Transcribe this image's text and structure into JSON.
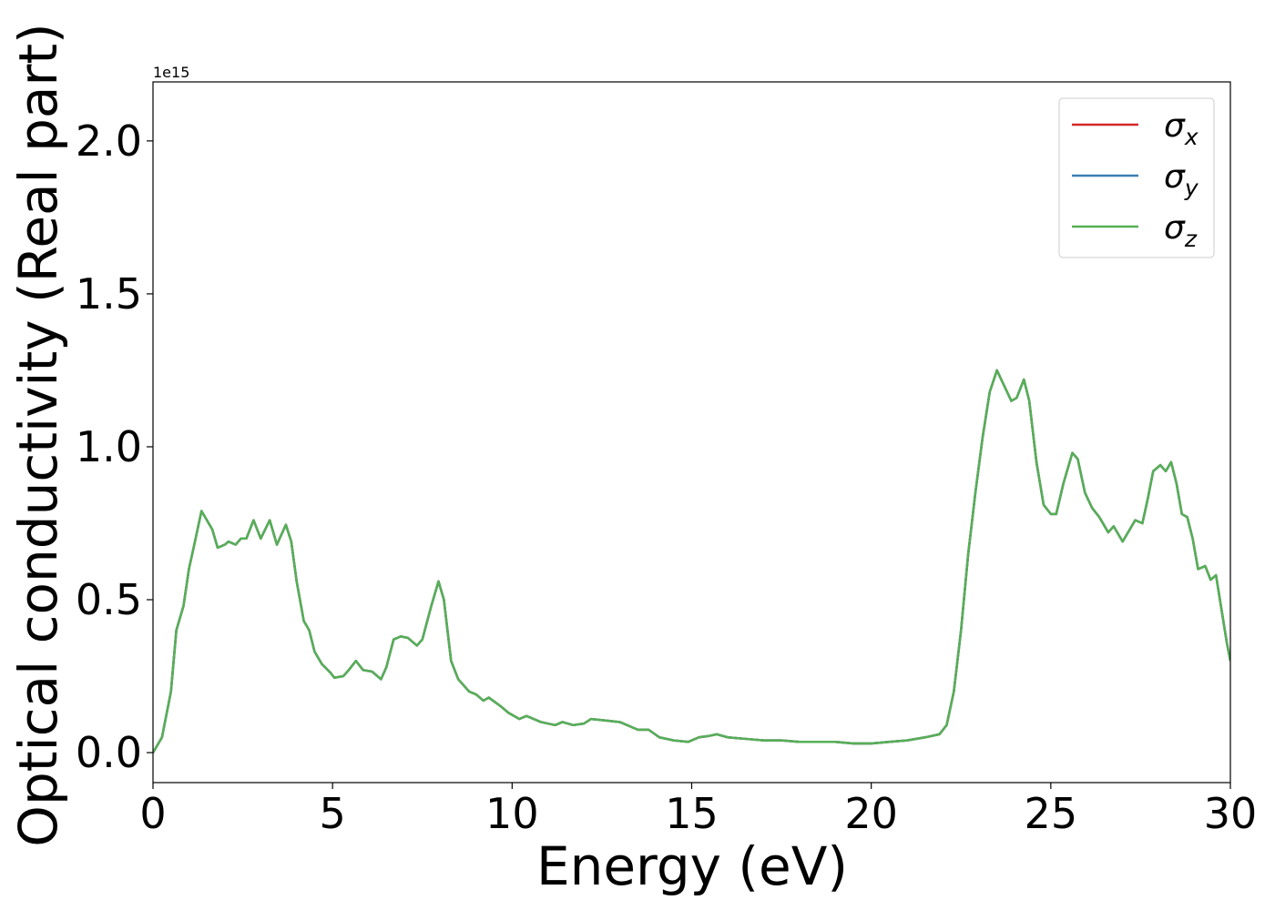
{
  "chart_data": {
    "type": "line",
    "xlabel": "Energy (eV)",
    "ylabel": "Optical conductivity (Real part)",
    "offset_text": "1e15",
    "xlim": [
      0,
      30
    ],
    "xticks": [
      0,
      5,
      10,
      15,
      20,
      25,
      30
    ],
    "ylim": [
      -0.098,
      2.193
    ],
    "yticks": [
      {
        "value": 0,
        "label": "0.0"
      },
      {
        "value": 0.5,
        "label": "0.5"
      },
      {
        "value": 1,
        "label": "1.0"
      },
      {
        "value": 1.5,
        "label": "1.5"
      },
      {
        "value": 2,
        "label": "2.0"
      }
    ],
    "legend": "upper right",
    "x": [
      0,
      0.25,
      0.5,
      0.65,
      0.85,
      1.0,
      1.15,
      1.35,
      1.5,
      1.65,
      1.8,
      2.0,
      2.1,
      2.3,
      2.45,
      2.6,
      2.8,
      3.0,
      3.25,
      3.45,
      3.7,
      3.85,
      4.0,
      4.2,
      4.35,
      4.5,
      4.7,
      4.95,
      5.05,
      5.3,
      5.45,
      5.65,
      5.85,
      6.1,
      6.35,
      6.5,
      6.7,
      6.9,
      7.1,
      7.35,
      7.5,
      7.75,
      7.95,
      8.1,
      8.3,
      8.5,
      8.8,
      9.0,
      9.2,
      9.35,
      9.7,
      9.9,
      10.2,
      10.4,
      10.8,
      11.2,
      11.4,
      11.7,
      12.0,
      12.2,
      12.6,
      13.0,
      13.5,
      13.8,
      14.1,
      14.5,
      14.9,
      15.2,
      15.5,
      15.7,
      16.0,
      16.5,
      17.0,
      17.5,
      18.0,
      18.5,
      19.0,
      19.5,
      20.0,
      20.5,
      21.0,
      21.5,
      21.9,
      22.1,
      22.3,
      22.5,
      22.7,
      22.9,
      23.1,
      23.3,
      23.5,
      23.7,
      23.9,
      24.05,
      24.25,
      24.4,
      24.6,
      24.8,
      25.0,
      25.15,
      25.35,
      25.6,
      25.75,
      25.95,
      26.15,
      26.35,
      26.6,
      26.75,
      27.0,
      27.2,
      27.35,
      27.55,
      27.7,
      27.85,
      28.05,
      28.2,
      28.35,
      28.5,
      28.65,
      28.8,
      28.95,
      29.1,
      29.3,
      29.45,
      29.6,
      29.75,
      29.9,
      30.0
    ],
    "series": [
      {
        "name": "σx",
        "color": "#d62728",
        "values": [
          0,
          0.05,
          0.2,
          0.4,
          0.48,
          0.6,
          0.68,
          0.79,
          0.76,
          0.73,
          0.67,
          0.68,
          0.69,
          0.68,
          0.7,
          0.7,
          0.76,
          0.7,
          0.76,
          0.68,
          0.745,
          0.69,
          0.56,
          0.43,
          0.4,
          0.33,
          0.29,
          0.26,
          0.245,
          0.25,
          0.27,
          0.3,
          0.27,
          0.265,
          0.24,
          0.28,
          0.37,
          0.38,
          0.375,
          0.35,
          0.37,
          0.48,
          0.56,
          0.5,
          0.3,
          0.24,
          0.2,
          0.19,
          0.17,
          0.18,
          0.15,
          0.13,
          0.11,
          0.12,
          0.1,
          0.09,
          0.1,
          0.09,
          0.095,
          0.11,
          0.105,
          0.1,
          0.075,
          0.075,
          0.05,
          0.04,
          0.035,
          0.05,
          0.055,
          0.06,
          0.05,
          0.045,
          0.04,
          0.04,
          0.035,
          0.035,
          0.035,
          0.03,
          0.03,
          0.035,
          0.04,
          0.05,
          0.06,
          0.09,
          0.2,
          0.4,
          0.65,
          0.85,
          1.03,
          1.18,
          1.25,
          1.2,
          1.15,
          1.16,
          1.22,
          1.15,
          0.95,
          0.81,
          0.78,
          0.78,
          0.88,
          0.98,
          0.96,
          0.85,
          0.8,
          0.77,
          0.72,
          0.74,
          0.69,
          0.73,
          0.76,
          0.75,
          0.83,
          0.92,
          0.94,
          0.92,
          0.95,
          0.88,
          0.78,
          0.77,
          0.7,
          0.6,
          0.61,
          0.565,
          0.58,
          0.47,
          0.36,
          0.3
        ]
      },
      {
        "name": "σy",
        "color": "#3b7fb5",
        "values": [
          0,
          0.05,
          0.2,
          0.4,
          0.48,
          0.6,
          0.68,
          0.79,
          0.76,
          0.73,
          0.67,
          0.68,
          0.69,
          0.68,
          0.7,
          0.7,
          0.76,
          0.7,
          0.76,
          0.68,
          0.745,
          0.69,
          0.56,
          0.43,
          0.4,
          0.33,
          0.29,
          0.26,
          0.245,
          0.25,
          0.27,
          0.3,
          0.27,
          0.265,
          0.24,
          0.28,
          0.37,
          0.38,
          0.375,
          0.35,
          0.37,
          0.48,
          0.56,
          0.5,
          0.3,
          0.24,
          0.2,
          0.19,
          0.17,
          0.18,
          0.15,
          0.13,
          0.11,
          0.12,
          0.1,
          0.09,
          0.1,
          0.09,
          0.095,
          0.11,
          0.105,
          0.1,
          0.075,
          0.075,
          0.05,
          0.04,
          0.035,
          0.05,
          0.055,
          0.06,
          0.05,
          0.045,
          0.04,
          0.04,
          0.035,
          0.035,
          0.035,
          0.03,
          0.03,
          0.035,
          0.04,
          0.05,
          0.06,
          0.09,
          0.2,
          0.4,
          0.65,
          0.85,
          1.03,
          1.18,
          1.25,
          1.2,
          1.15,
          1.16,
          1.22,
          1.15,
          0.95,
          0.81,
          0.78,
          0.78,
          0.88,
          0.98,
          0.96,
          0.85,
          0.8,
          0.77,
          0.72,
          0.74,
          0.69,
          0.73,
          0.76,
          0.75,
          0.83,
          0.92,
          0.94,
          0.92,
          0.95,
          0.88,
          0.78,
          0.77,
          0.7,
          0.6,
          0.61,
          0.565,
          0.58,
          0.47,
          0.36,
          0.3
        ]
      },
      {
        "name": "σz",
        "color": "#56af56",
        "values": [
          0,
          0.05,
          0.2,
          0.4,
          0.48,
          0.6,
          0.68,
          0.79,
          0.76,
          0.73,
          0.67,
          0.68,
          0.69,
          0.68,
          0.7,
          0.7,
          0.76,
          0.7,
          0.76,
          0.68,
          0.745,
          0.69,
          0.56,
          0.43,
          0.4,
          0.33,
          0.29,
          0.26,
          0.245,
          0.25,
          0.27,
          0.3,
          0.27,
          0.265,
          0.24,
          0.28,
          0.37,
          0.38,
          0.375,
          0.35,
          0.37,
          0.48,
          0.56,
          0.5,
          0.3,
          0.24,
          0.2,
          0.19,
          0.17,
          0.18,
          0.15,
          0.13,
          0.11,
          0.12,
          0.1,
          0.09,
          0.1,
          0.09,
          0.095,
          0.11,
          0.105,
          0.1,
          0.075,
          0.075,
          0.05,
          0.04,
          0.035,
          0.05,
          0.055,
          0.06,
          0.05,
          0.045,
          0.04,
          0.04,
          0.035,
          0.035,
          0.035,
          0.03,
          0.03,
          0.035,
          0.04,
          0.05,
          0.06,
          0.09,
          0.2,
          0.4,
          0.65,
          0.85,
          1.03,
          1.18,
          1.25,
          1.2,
          1.15,
          1.16,
          1.22,
          1.15,
          0.95,
          0.81,
          0.78,
          0.78,
          0.88,
          0.98,
          0.96,
          0.85,
          0.8,
          0.77,
          0.72,
          0.74,
          0.69,
          0.73,
          0.76,
          0.75,
          0.83,
          0.92,
          0.94,
          0.92,
          0.95,
          0.88,
          0.78,
          0.77,
          0.7,
          0.6,
          0.61,
          0.565,
          0.58,
          0.47,
          0.36,
          0.3
        ]
      }
    ]
  }
}
